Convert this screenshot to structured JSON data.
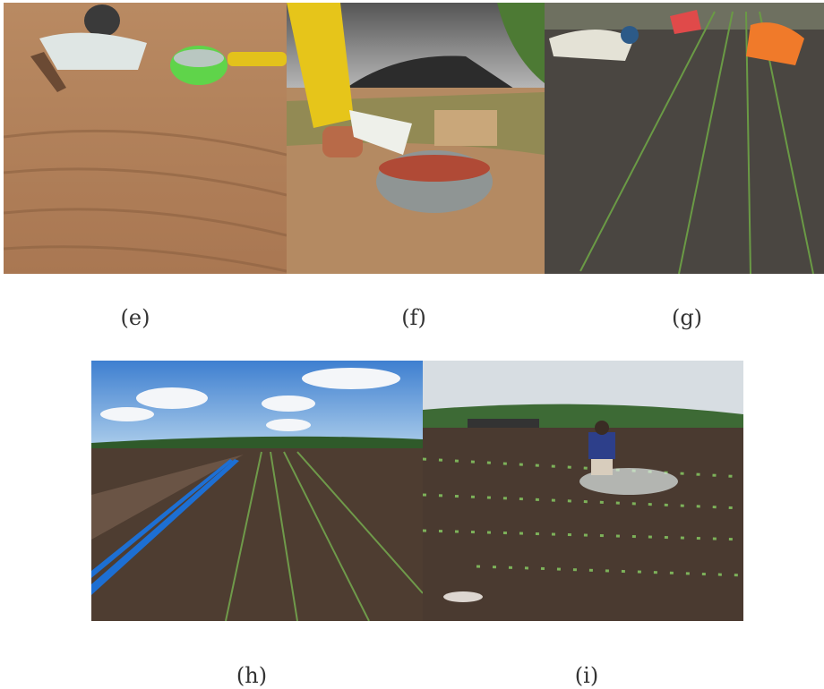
{
  "panels": [
    {
      "label": "(e)"
    },
    {
      "label": "(f)"
    },
    {
      "label": "(g)"
    },
    {
      "label": "(h)"
    },
    {
      "label": "(i)"
    }
  ]
}
